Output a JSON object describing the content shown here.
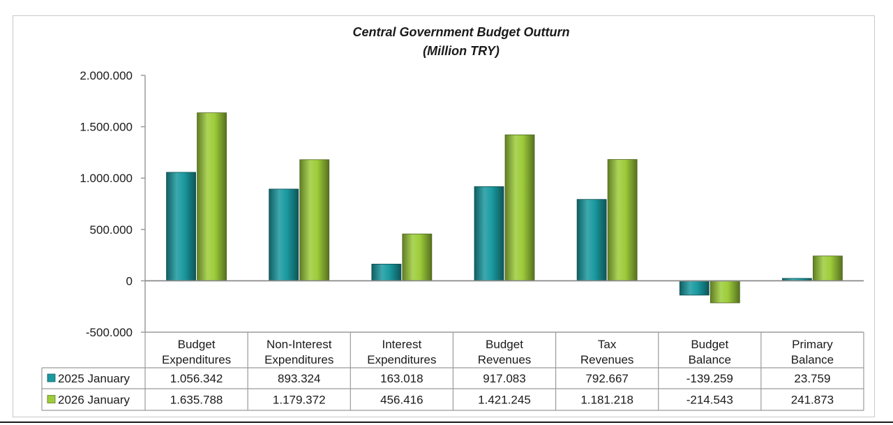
{
  "chart_data": {
    "type": "bar",
    "title": "Central Government Budget Outturn",
    "subtitle": "(Million TRY)",
    "categories": [
      [
        "Budget",
        "Expenditures"
      ],
      [
        "Non-Interest",
        "Expenditures"
      ],
      [
        "Interest",
        "Expenditures"
      ],
      [
        "Budget",
        "Revenues"
      ],
      [
        "Tax",
        "Revenues"
      ],
      [
        "Budget",
        "Balance"
      ],
      [
        "Primary",
        "Balance"
      ]
    ],
    "ylim": [
      -500000,
      2000000
    ],
    "yticks": [
      -500000,
      0,
      500000,
      1000000,
      1500000,
      2000000
    ],
    "ytick_labels": [
      "-500.000",
      "0",
      "500.000",
      "1.000.000",
      "1.500.000",
      "2.000.000"
    ],
    "grid": false,
    "legend": "data-table",
    "series": [
      {
        "name": "2025 January",
        "color": "#1a9aa0",
        "values": [
          1056342,
          893324,
          163018,
          917083,
          792667,
          -139259,
          23759
        ],
        "labels": [
          "1.056.342",
          "893.324",
          "163.018",
          "917.083",
          "792.667",
          "-139.259",
          "23.759"
        ]
      },
      {
        "name": "2026 January",
        "color": "#9dcc3a",
        "values": [
          1635788,
          1179372,
          456416,
          1421245,
          1181218,
          -214543,
          241873
        ],
        "labels": [
          "1.635.788",
          "1.179.372",
          "456.416",
          "1.421.245",
          "1.181.218",
          "-214.543",
          "241.873"
        ]
      }
    ]
  }
}
